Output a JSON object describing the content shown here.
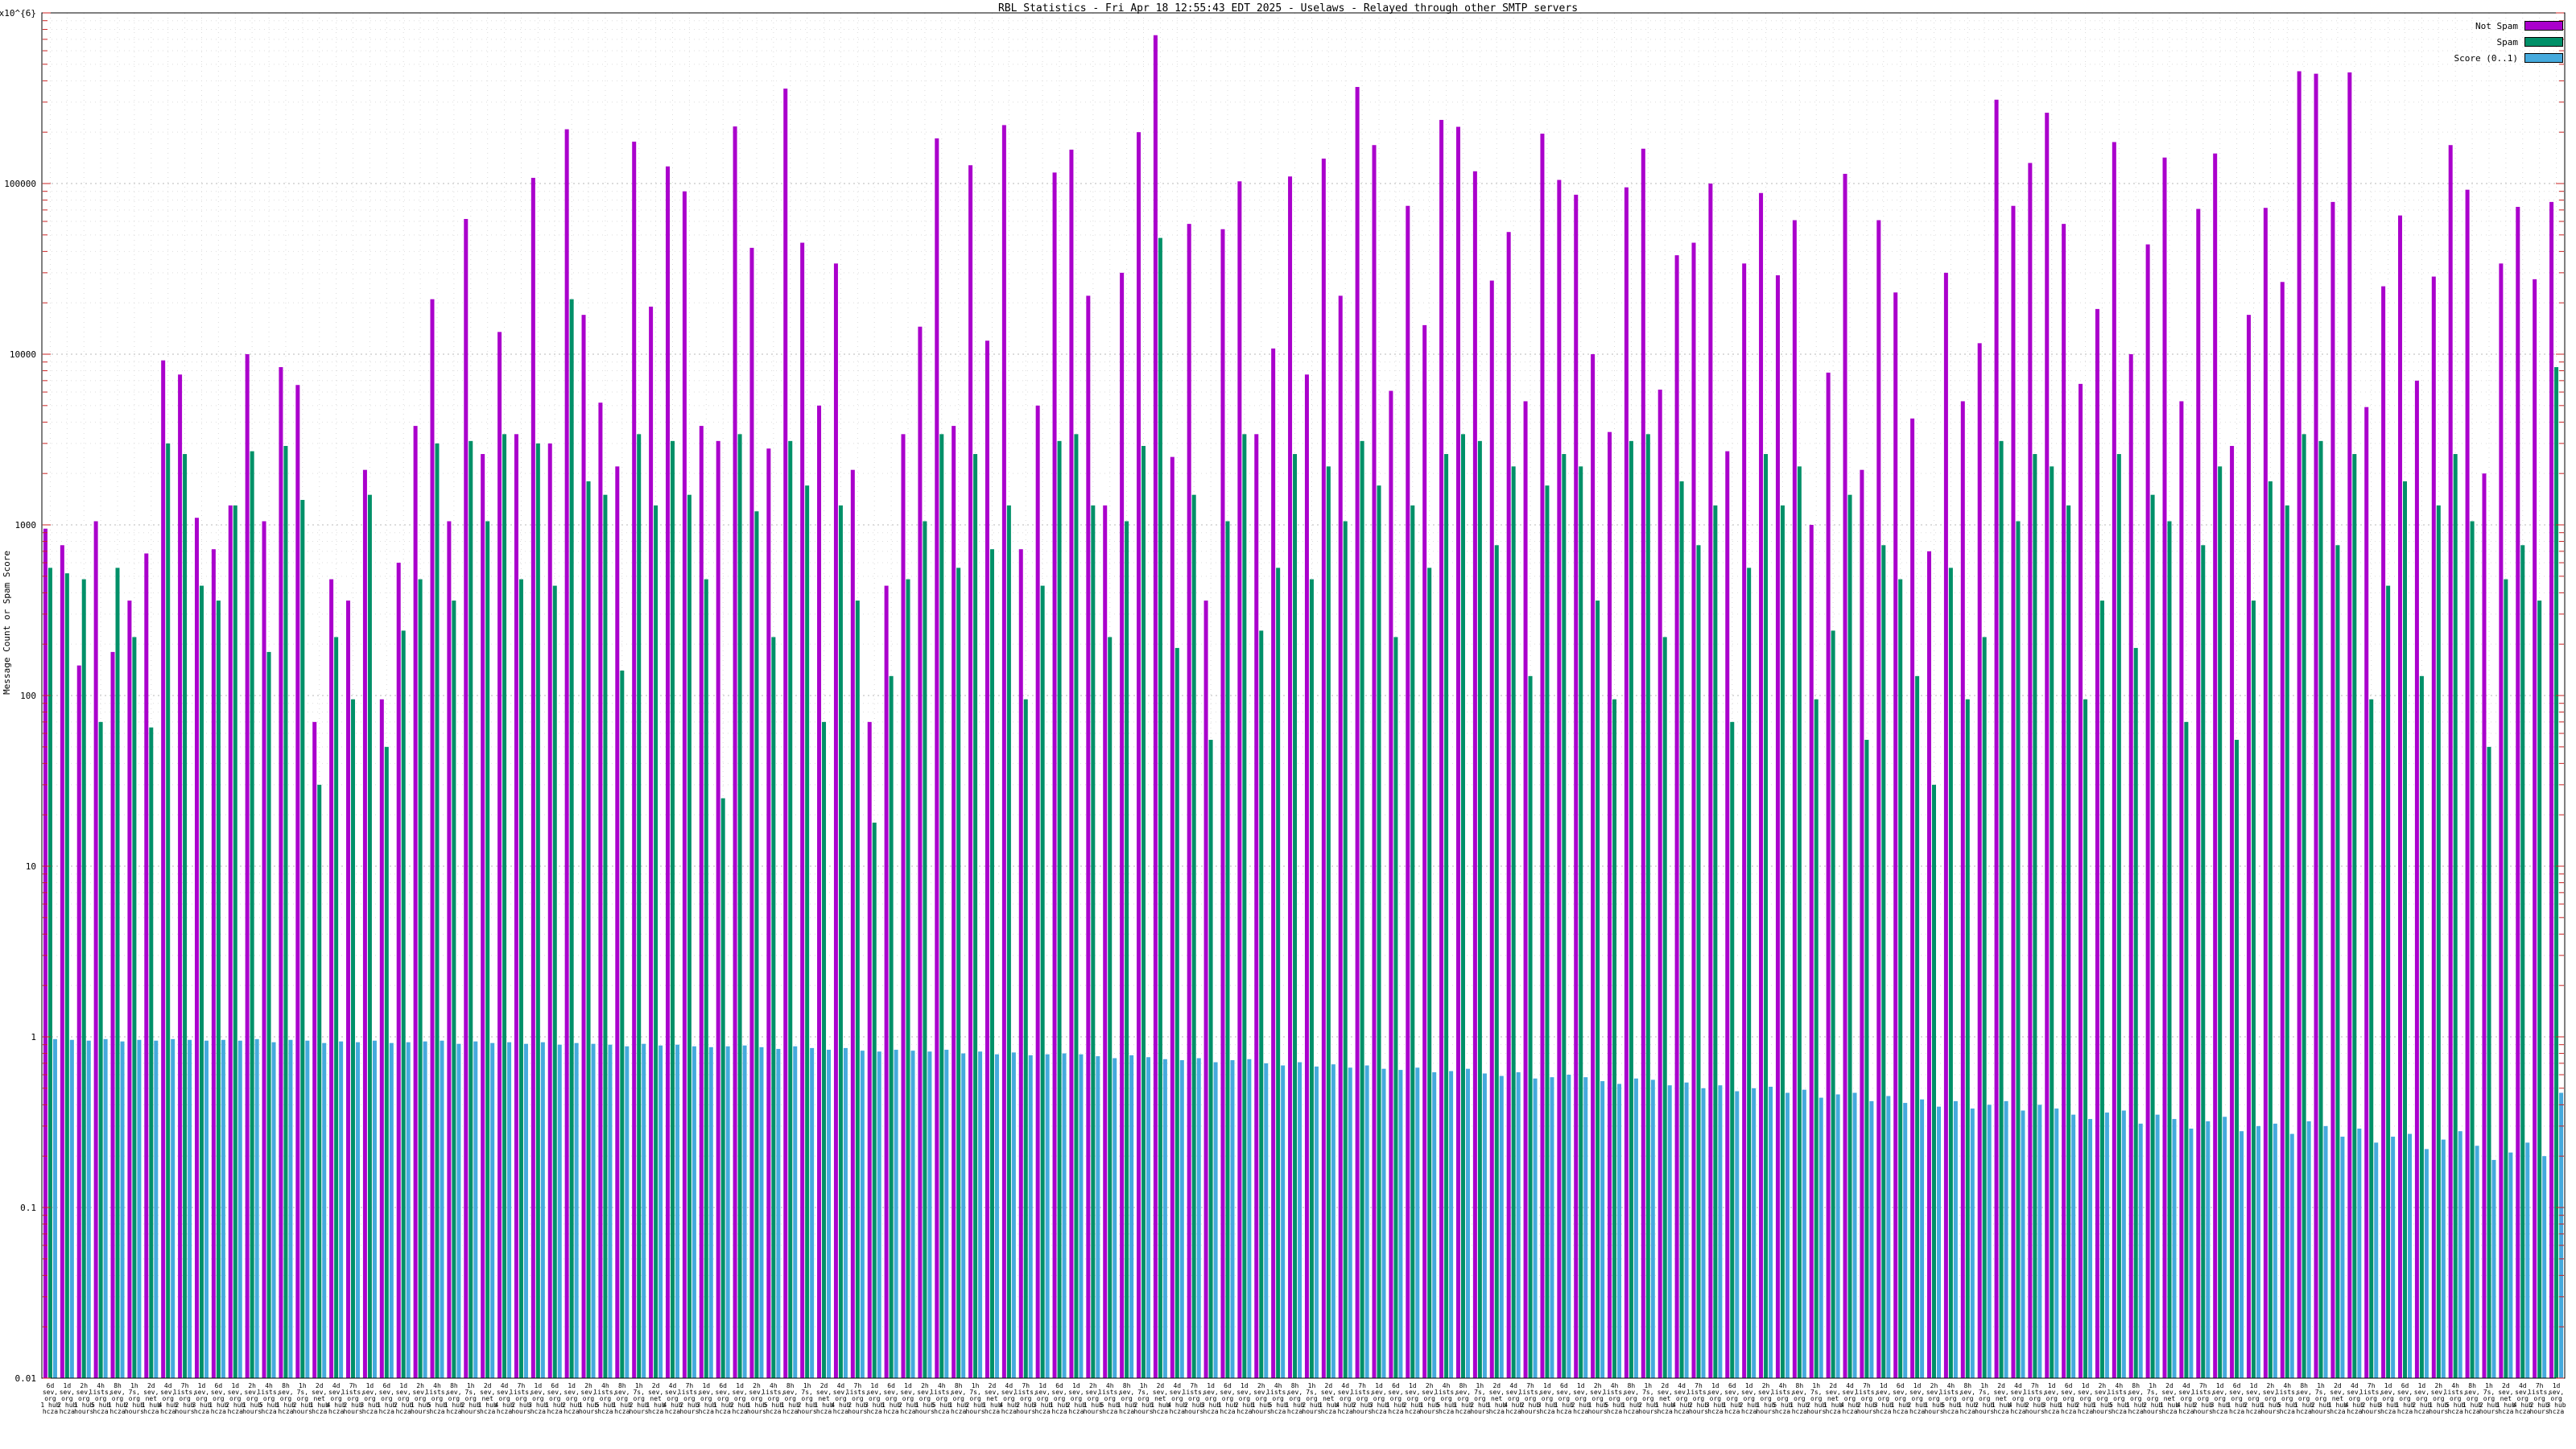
{
  "title": "RBL Statistics - Fri Apr 18 12:55:43 EDT 2025 - Uselaws - Relayed through other SMTP servers",
  "y_axis_label": "Message Count or Spam Score",
  "legend": [
    {
      "label": "Not Spam",
      "color": "#aa00cc"
    },
    {
      "label": "Spam",
      "color": "#009068"
    },
    {
      "label": "Score (0..1)",
      "color": "#45aadd"
    }
  ],
  "chart_data": {
    "type": "bar",
    "title": "RBL Statistics - Fri Apr 18 12:55:43 EDT 2025 - Uselaws - Relayed through other SMTP servers",
    "ylabel": "Message Count or Spam Score",
    "grid": true,
    "legend_position": "top-right",
    "y_axis": {
      "scale": "log",
      "min": 0.01,
      "max": 1000000,
      "ticks": [
        {
          "value": 1000000,
          "label": "1x10^{6}"
        },
        {
          "value": 100000,
          "label": "100000"
        },
        {
          "value": 10000,
          "label": "10000"
        },
        {
          "value": 1000,
          "label": "1000"
        },
        {
          "value": 100,
          "label": "100"
        },
        {
          "value": 10,
          "label": "10"
        },
        {
          "value": 1,
          "label": "1"
        },
        {
          "value": 0.1,
          "label": "0.1"
        },
        {
          "value": 0.01,
          "label": "0.01"
        }
      ]
    },
    "series": [
      {
        "name": "Not Spam",
        "key": "not-spam",
        "color": "#aa00cc",
        "values": [
          950,
          760,
          150,
          1050,
          180,
          360,
          680,
          9200,
          7600,
          1100,
          720,
          1300,
          10000,
          1050,
          8400,
          6600,
          70,
          480,
          360,
          2100,
          95,
          600,
          3800,
          21000,
          1050,
          62000,
          2600,
          13500,
          3400,
          108000,
          3000,
          208000,
          17000,
          5200,
          2200,
          176000,
          19000,
          126000,
          90000,
          3800,
          3100,
          216000,
          42000,
          2800,
          360000,
          45000,
          5000,
          34000,
          2100,
          70,
          440,
          3400,
          14500,
          184000,
          3800,
          128000,
          12000,
          220000,
          720,
          5000,
          116000,
          158000,
          22000,
          1300,
          30000,
          200000,
          740000,
          2500,
          58000,
          360,
          54000,
          103000,
          3400,
          10800,
          110000,
          7600,
          140000,
          22000,
          368000,
          168000,
          6100,
          74000,
          14800,
          236000,
          215000,
          118000,
          27000,
          52000,
          5300,
          196000,
          105000,
          86000,
          10000,
          3500,
          95000,
          160000,
          6200,
          38000,
          45000,
          100000,
          2700,
          34000,
          88000,
          29000,
          61000,
          1000,
          7800,
          114000,
          2100,
          61000,
          23000,
          4200,
          700,
          30000,
          5300,
          11600,
          310000,
          74000,
          132000,
          260000,
          58000,
          6700,
          18400,
          175000,
          10000,
          44000,
          142000,
          5300,
          71000,
          150000,
          2900,
          17000,
          72000,
          26500,
          455000,
          440000,
          78000,
          448000,
          4900,
          25000,
          65000,
          7000,
          28500,
          168000,
          92000,
          2000,
          34000,
          73000,
          27500,
          78000
        ]
      },
      {
        "name": "Spam",
        "key": "spam",
        "color": "#009068",
        "values": [
          560,
          520,
          480,
          70,
          560,
          220,
          65,
          3000,
          2600,
          440,
          360,
          1300,
          2700,
          180,
          2900,
          1400,
          30,
          220,
          95,
          1500,
          50,
          240,
          480,
          3000,
          360,
          3100,
          1050,
          3400,
          480,
          3000,
          440,
          21000,
          1800,
          1500,
          140,
          3400,
          1300,
          3100,
          1500,
          480,
          25,
          3400,
          1200,
          220,
          3100,
          1700,
          70,
          1300,
          360,
          18,
          130,
          480,
          1050,
          3400,
          560,
          2600,
          720,
          1300,
          95,
          440,
          3100,
          3400,
          1300,
          220,
          1050,
          2900,
          48000,
          190,
          1500,
          55,
          1050,
          3400,
          240,
          560,
          2600,
          480,
          2200,
          1050,
          3100,
          1700,
          220,
          1300,
          560,
          2600,
          3400,
          3100,
          760,
          2200,
          130,
          1700,
          2600,
          2200,
          360,
          95,
          3100,
          3400,
          220,
          1800,
          760,
          1300,
          70,
          560,
          2600,
          1300,
          2200,
          95,
          240,
          1500,
          55,
          760,
          480,
          130,
          30,
          560,
          95,
          220,
          3100,
          1050,
          2600,
          2200,
          1300,
          95,
          360,
          2600,
          190,
          1500,
          1050,
          70,
          760,
          2200,
          55,
          360,
          1800,
          1300,
          3400,
          3100,
          760,
          2600,
          95,
          440,
          1800,
          130,
          1300,
          2600,
          1050,
          50,
          480,
          760,
          360,
          8400
        ]
      },
      {
        "name": "Score (0..1)",
        "key": "score",
        "color": "#45aadd",
        "values": [
          0.97,
          0.96,
          0.95,
          0.97,
          0.94,
          0.96,
          0.95,
          0.97,
          0.96,
          0.95,
          0.96,
          0.95,
          0.97,
          0.93,
          0.96,
          0.95,
          0.92,
          0.94,
          0.93,
          0.95,
          0.92,
          0.93,
          0.94,
          0.95,
          0.91,
          0.94,
          0.92,
          0.93,
          0.91,
          0.93,
          0.9,
          0.92,
          0.91,
          0.9,
          0.88,
          0.91,
          0.89,
          0.9,
          0.88,
          0.87,
          0.88,
          0.89,
          0.87,
          0.85,
          0.88,
          0.86,
          0.84,
          0.86,
          0.83,
          0.82,
          0.84,
          0.83,
          0.82,
          0.84,
          0.8,
          0.82,
          0.79,
          0.81,
          0.78,
          0.79,
          0.8,
          0.79,
          0.77,
          0.75,
          0.78,
          0.76,
          0.74,
          0.73,
          0.75,
          0.71,
          0.73,
          0.74,
          0.7,
          0.68,
          0.71,
          0.67,
          0.69,
          0.66,
          0.68,
          0.65,
          0.64,
          0.66,
          0.62,
          0.63,
          0.65,
          0.61,
          0.59,
          0.62,
          0.57,
          0.58,
          0.6,
          0.58,
          0.55,
          0.53,
          0.57,
          0.56,
          0.52,
          0.54,
          0.5,
          0.52,
          0.48,
          0.5,
          0.51,
          0.47,
          0.49,
          0.44,
          0.46,
          0.47,
          0.42,
          0.45,
          0.41,
          0.43,
          0.39,
          0.42,
          0.38,
          0.4,
          0.42,
          0.37,
          0.4,
          0.38,
          0.35,
          0.33,
          0.36,
          0.37,
          0.31,
          0.35,
          0.33,
          0.29,
          0.32,
          0.34,
          0.28,
          0.3,
          0.31,
          0.27,
          0.32,
          0.3,
          0.26,
          0.29,
          0.24,
          0.26,
          0.27,
          0.22,
          0.25,
          0.28,
          0.23,
          0.19,
          0.21,
          0.24,
          0.2,
          0.47
        ]
      }
    ],
    "x_label_cycle": [
      "6d\nsev,\norg\n1 hub\nhcza",
      "1d\nsev,\norg\n2 hub\nhcza",
      "2h\nsev,\norg\n1 hub\nhours",
      "4h\nlists,\norg\n5 hub\nhcza",
      "8h\nsev,\norg\n1 hub\nhcza",
      "1h\n7s,\norg\n2 hub\nhours",
      "2d\nsev,\nnet\n1 hub\nhcza",
      "4d\nsev,\norg\n4 hub\nhcza",
      "7h\nlists,\norg\n2 hub\nhours",
      "1d\nsev,\norg\n3 hub\nhcza"
    ],
    "x_labels_repeat": true
  }
}
